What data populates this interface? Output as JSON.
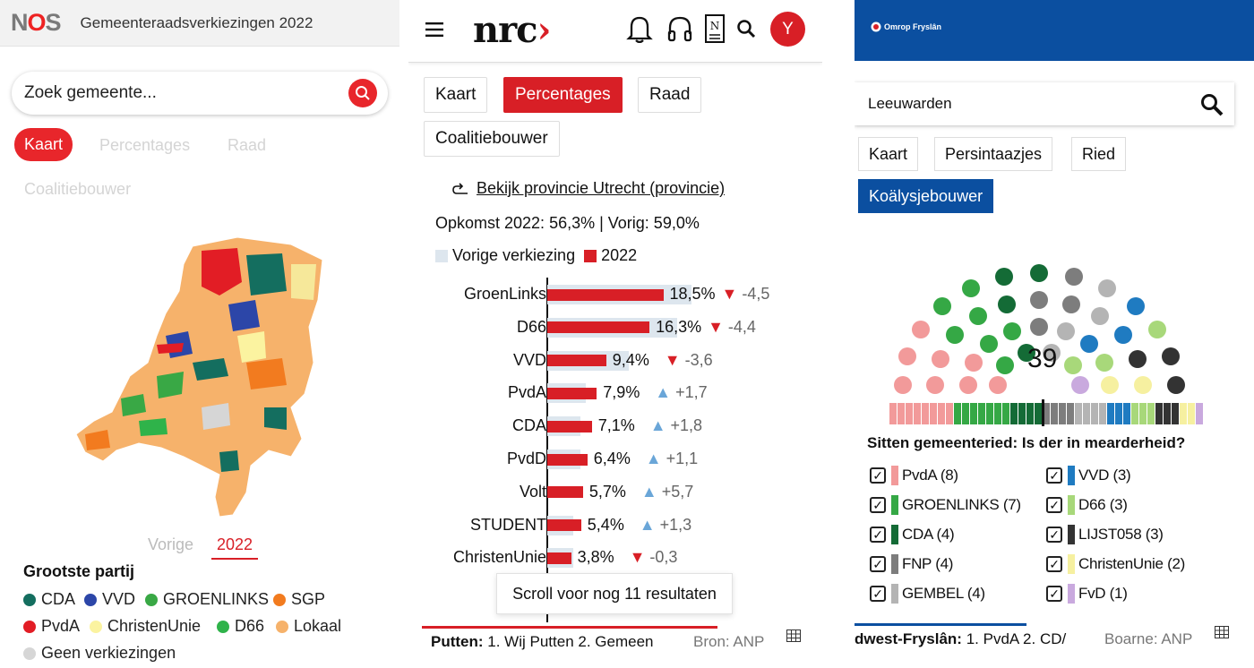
{
  "nos": {
    "logo_n": "N",
    "logo_o": "O",
    "logo_s": "S",
    "title": "Gemeenteraadsverkiezingen 2022",
    "search_placeholder": "Zoek gemeente...",
    "tabs": [
      "Kaart",
      "Percentages",
      "Raad",
      "Coalitiebouwer"
    ],
    "years": [
      "Vorige",
      "2022"
    ],
    "legend_title": "Grootste partij",
    "legend": [
      {
        "label": "CDA",
        "color": "#146e5f"
      },
      {
        "label": "VVD",
        "color": "#2c46a8"
      },
      {
        "label": "GROENLINKS",
        "color": "#39a845"
      },
      {
        "label": "SGP",
        "color": "#f27b1f"
      },
      {
        "label": "PvdA",
        "color": "#e21d25"
      },
      {
        "label": "ChristenUnie",
        "color": "#fbf3a0"
      },
      {
        "label": "D66",
        "color": "#2fb34a"
      },
      {
        "label": "Lokaal",
        "color": "#f6b26b"
      },
      {
        "label": "Geen verkiezingen",
        "color": "#d6d6d6"
      }
    ]
  },
  "nrc": {
    "logo": "nrc",
    "avatar": "Y",
    "tabs": [
      "Kaart",
      "Percentages",
      "Raad",
      "Coalitiebouwer"
    ],
    "province_link": "Bekijk provincie Utrecht (provincie)",
    "turnout": "Opkomst 2022: 56,3% | Vorig: 59,0%",
    "legend_prev": "Vorige verkiezing",
    "legend_curr": "2022",
    "scroll_more": "Scroll voor nog 11 resultaten",
    "footer_place": "Putten:",
    "footer_text": "1. Wij Putten  2. Gemeen",
    "source": "Bron: ANP"
  },
  "chart_data": {
    "type": "bar",
    "categories": [
      "GroenLinks",
      "D66",
      "VVD",
      "PvdA",
      "CDA",
      "PvdD",
      "Volt",
      "STUDENT",
      "ChristenUnie"
    ],
    "series": [
      {
        "name": "2022",
        "values": [
          18.5,
          16.3,
          9.4,
          7.9,
          7.1,
          6.4,
          5.7,
          5.4,
          3.8
        ]
      },
      {
        "name": "Vorige verkiezing",
        "values": [
          23.0,
          20.7,
          13.0,
          6.2,
          5.3,
          5.3,
          0,
          4.1,
          4.1
        ]
      }
    ],
    "value_labels": [
      "18,5%",
      "16,3%",
      "9,4%",
      "7,9%",
      "7,1%",
      "6,4%",
      "5,7%",
      "5,4%",
      "3,8%"
    ],
    "deltas": [
      "-4,5",
      "-4,4",
      "-3,6",
      "+1,7",
      "+1,8",
      "+1,1",
      "+5,7",
      "+1,3",
      "-0,3"
    ],
    "colors": {
      "current": "#d81f26",
      "previous": "#dde6ee",
      "down": "#d81f26",
      "up": "#6aa6d8"
    }
  },
  "omrop": {
    "logo": "Omrop Fryslân",
    "search_value": "Leeuwarden",
    "tabs": [
      "Kaart",
      "Persintaazjes",
      "Ried",
      "Koälysjebouwer"
    ],
    "seats_total": "39",
    "question": "Sitten gemeenteried: Is der in mearderheid?",
    "parties": [
      {
        "label": "PvdA (8)",
        "color": "#f29a9a",
        "seats": 8
      },
      {
        "label": "VVD (3)",
        "color": "#1f7bc1",
        "seats": 3
      },
      {
        "label": "GROENLINKS (7)",
        "color": "#35a845",
        "seats": 7
      },
      {
        "label": "D66 (3)",
        "color": "#a8d87a",
        "seats": 3
      },
      {
        "label": "CDA (4)",
        "color": "#146b36",
        "seats": 4
      },
      {
        "label": "LIJST058 (3)",
        "color": "#333333",
        "seats": 3
      },
      {
        "label": "FNP (4)",
        "color": "#7d7d7d",
        "seats": 4
      },
      {
        "label": "ChristenUnie (2)",
        "color": "#f6f0a0",
        "seats": 2
      },
      {
        "label": "GEMBEL (4)",
        "color": "#b4b4b4",
        "seats": 4
      },
      {
        "label": "FvD (1)",
        "color": "#c9a9de",
        "seats": 1
      }
    ],
    "footer_place": "dwest-Fryslân:",
    "footer_text": "1. PvdA  2. CD/",
    "source": "Boarne: ANP"
  }
}
